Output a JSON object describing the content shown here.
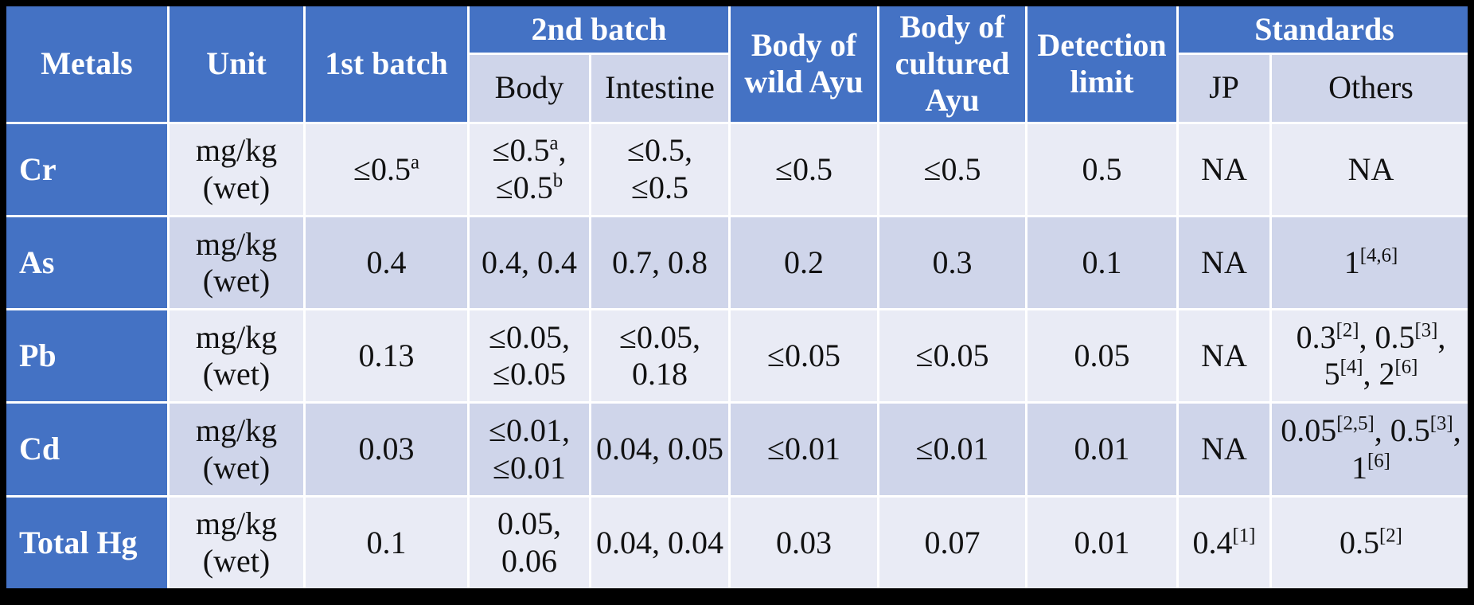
{
  "colors": {
    "header_blue": "#4472C4",
    "band_light": "#E9EBF5",
    "band_dark": "#CFD5EA",
    "gridline": "#FFFFFF",
    "header_text": "#FFFFFF",
    "body_text": "#111111",
    "surround": "#000000"
  },
  "table": {
    "headers": {
      "metals": "Metals",
      "unit": "Unit",
      "first_batch": "1st batch",
      "second_batch": "2nd batch",
      "second_batch_body": "Body",
      "second_batch_intestine": "Intestine",
      "body_wild_ayu": "Body of\nwild Ayu",
      "body_cultured_ayu": "Body of\ncultured\nAyu",
      "detection_limit": "Detection\nlimit",
      "standards": "Standards",
      "standards_jp": "JP",
      "standards_others": "Others"
    },
    "rows": [
      {
        "metal": "Cr",
        "unit": "mg/kg\n(wet)",
        "first_batch": "≤0.5^{a}",
        "body": "≤0.5^{a},\n≤0.5^{b}",
        "intestine": "≤0.5,\n≤0.5",
        "wild": "≤0.5",
        "cultured": "≤0.5",
        "detection": "0.5",
        "jp": "NA",
        "others": "NA"
      },
      {
        "metal": "As",
        "unit": "mg/kg\n(wet)",
        "first_batch": "0.4",
        "body": "0.4, 0.4",
        "intestine": "0.7, 0.8",
        "wild": "0.2",
        "cultured": "0.3",
        "detection": "0.1",
        "jp": "NA",
        "others": "1^{[4,6]}"
      },
      {
        "metal": "Pb",
        "unit": "mg/kg\n(wet)",
        "first_batch": "0.13",
        "body": "≤0.05,\n≤0.05",
        "intestine": "≤0.05,\n0.18",
        "wild": "≤0.05",
        "cultured": "≤0.05",
        "detection": "0.05",
        "jp": "NA",
        "others": "0.3^{[2]}, 0.5^{[3]},\n5^{[4]}, 2^{[6]}"
      },
      {
        "metal": "Cd",
        "unit": "mg/kg\n(wet)",
        "first_batch": "0.03",
        "body": "≤0.01,\n≤0.01",
        "intestine": "0.04, 0.05",
        "wild": "≤0.01",
        "cultured": "≤0.01",
        "detection": "0.01",
        "jp": "NA",
        "others": "0.05^{[2,5]}, 0.5^{[3]},\n1^{[6]}"
      },
      {
        "metal": "Total Hg",
        "unit": "mg/kg\n(wet)",
        "first_batch": "0.1",
        "body": "0.05,\n0.06",
        "intestine": "0.04, 0.04",
        "wild": "0.03",
        "cultured": "0.07",
        "detection": "0.01",
        "jp": "0.4^{[1]}",
        "others": "0.5^{[2]}"
      }
    ]
  }
}
